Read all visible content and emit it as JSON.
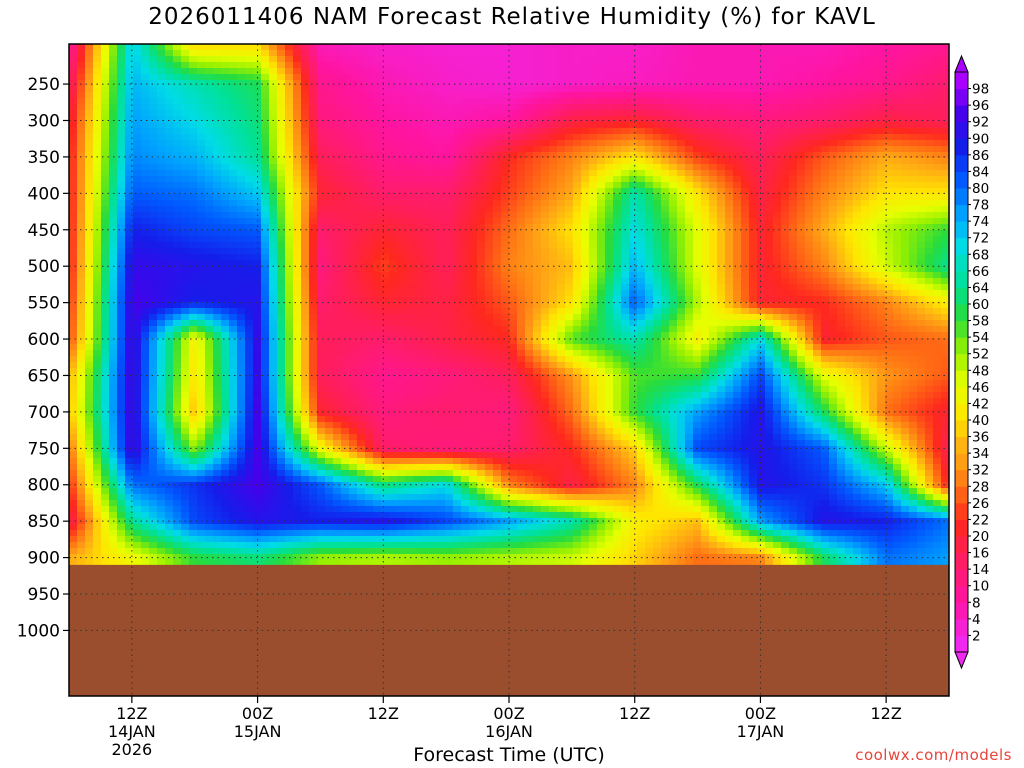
{
  "title": "2026011406 NAM Forecast Relative Humidity (%) for KAVL",
  "credit": "coolwx.com/models",
  "chart_data": {
    "type": "heatmap",
    "title": "2026011406 NAM Forecast Relative Humidity (%) for KAVL",
    "xlabel": "Forecast Time (UTC)",
    "ylabel": "",
    "y_axis": "pressure (hPa), inverted",
    "y_ticks": [
      250,
      300,
      350,
      400,
      450,
      500,
      550,
      600,
      650,
      700,
      750,
      800,
      850,
      900,
      950,
      1000
    ],
    "y_tick_labels": [
      "250",
      "300",
      "350",
      "400",
      "450",
      "500",
      "550",
      "600",
      "650",
      "700",
      "750",
      "800",
      "850",
      "900",
      "950",
      "1000"
    ],
    "x_ticks": [
      {
        "hour": 6,
        "label": "12Z",
        "sub1": "14JAN",
        "sub2": "2026"
      },
      {
        "hour": 18,
        "label": "00Z",
        "sub1": "15JAN",
        "sub2": ""
      },
      {
        "hour": 30,
        "label": "12Z",
        "sub1": "",
        "sub2": ""
      },
      {
        "hour": 42,
        "label": "00Z",
        "sub1": "16JAN",
        "sub2": ""
      },
      {
        "hour": 54,
        "label": "12Z",
        "sub1": "",
        "sub2": ""
      },
      {
        "hour": 66,
        "label": "00Z",
        "sub1": "17JAN",
        "sub2": ""
      },
      {
        "hour": 78,
        "label": "12Z",
        "sub1": "",
        "sub2": ""
      }
    ],
    "x_range_hours": [
      0,
      84
    ],
    "grid": true,
    "colorbar_levels": [
      2,
      4,
      8,
      10,
      14,
      16,
      20,
      22,
      26,
      28,
      32,
      34,
      36,
      40,
      42,
      46,
      48,
      52,
      54,
      58,
      60,
      64,
      66,
      68,
      72,
      74,
      78,
      80,
      84,
      86,
      90,
      92,
      96,
      98
    ],
    "colorbar_placement": "right",
    "ground_color": "#9a4e2e",
    "ground_level_hpa": 910,
    "surface_threshold_hpa": 905,
    "rh_grid": {
      "levels_hpa": [
        200,
        250,
        300,
        350,
        400,
        450,
        500,
        550,
        600,
        650,
        700,
        750,
        800,
        850,
        900
      ],
      "hours": [
        0,
        6,
        12,
        18,
        24,
        30,
        36,
        42,
        48,
        54,
        60,
        66,
        72,
        78,
        84
      ],
      "values": [
        [
          8,
          72,
          40,
          40,
          6,
          4,
          3,
          3,
          4,
          4,
          6,
          6,
          6,
          8,
          10
        ],
        [
          14,
          74,
          66,
          60,
          10,
          6,
          4,
          3,
          4,
          5,
          6,
          6,
          8,
          10,
          14
        ],
        [
          18,
          76,
          70,
          62,
          12,
          8,
          6,
          8,
          18,
          20,
          14,
          12,
          14,
          18,
          16
        ],
        [
          20,
          78,
          74,
          64,
          16,
          10,
          8,
          22,
          30,
          40,
          24,
          16,
          26,
          34,
          30
        ],
        [
          20,
          82,
          80,
          72,
          20,
          14,
          14,
          24,
          34,
          66,
          40,
          18,
          30,
          40,
          40
        ],
        [
          20,
          88,
          84,
          82,
          14,
          20,
          16,
          28,
          40,
          70,
          46,
          20,
          34,
          50,
          58
        ],
        [
          20,
          92,
          90,
          88,
          12,
          24,
          16,
          30,
          36,
          74,
          46,
          20,
          30,
          48,
          64
        ],
        [
          22,
          94,
          88,
          90,
          14,
          20,
          18,
          26,
          40,
          82,
          50,
          20,
          22,
          30,
          42
        ],
        [
          24,
          94,
          42,
          92,
          16,
          14,
          18,
          22,
          56,
          66,
          42,
          70,
          20,
          26,
          28
        ],
        [
          34,
          94,
          40,
          92,
          16,
          10,
          12,
          16,
          32,
          56,
          58,
          84,
          46,
          32,
          26
        ],
        [
          36,
          94,
          36,
          94,
          20,
          12,
          14,
          12,
          28,
          58,
          76,
          90,
          60,
          28,
          20
        ],
        [
          28,
          94,
          52,
          94,
          44,
          14,
          12,
          14,
          22,
          38,
          84,
          90,
          82,
          48,
          16
        ],
        [
          22,
          80,
          86,
          94,
          82,
          62,
          70,
          30,
          18,
          30,
          60,
          90,
          86,
          72,
          20
        ],
        [
          16,
          64,
          84,
          90,
          88,
          90,
          84,
          76,
          66,
          42,
          36,
          76,
          90,
          88,
          80
        ],
        [
          34,
          44,
          58,
          62,
          52,
          50,
          52,
          50,
          48,
          38,
          28,
          30,
          60,
          80,
          76
        ]
      ]
    }
  }
}
